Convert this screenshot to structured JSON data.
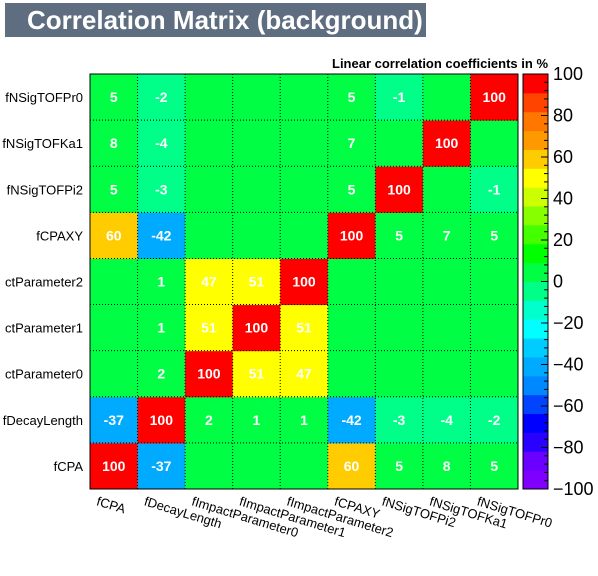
{
  "chart_data": {
    "type": "heatmap",
    "title": "Correlation Matrix (background)",
    "subtitle": "Linear correlation coefficients in %",
    "variables": [
      "fCPA",
      "fDecayLength",
      "fImpactParameter0",
      "fImpactParameter1",
      "fImpactParameter2",
      "fCPAXY",
      "fNSigTOFPi2",
      "fNSigTOFKa1",
      "fNSigTOFPr0"
    ],
    "y_labels_visible": [
      "fCPA",
      "fDecayLength",
      "ctParameter0",
      "ctParameter1",
      "ctParameter2",
      "fCPAXY",
      "fNSigTOFPi2",
      "fNSigTOFKa1",
      "fNSigTOFPr0"
    ],
    "matrix": [
      [
        100,
        -37,
        0,
        0,
        0,
        60,
        5,
        8,
        5
      ],
      [
        -37,
        100,
        2,
        1,
        1,
        -42,
        -3,
        -4,
        -2
      ],
      [
        0,
        2,
        100,
        51,
        47,
        0,
        0,
        0,
        0
      ],
      [
        0,
        1,
        51,
        100,
        51,
        0,
        0,
        0,
        0
      ],
      [
        0,
        1,
        47,
        51,
        100,
        0,
        0,
        0,
        0
      ],
      [
        60,
        -42,
        0,
        0,
        0,
        100,
        5,
        7,
        5
      ],
      [
        5,
        -3,
        0,
        0,
        0,
        5,
        100,
        0,
        -1
      ],
      [
        8,
        -4,
        0,
        0,
        0,
        7,
        0,
        100,
        0
      ],
      [
        5,
        -2,
        0,
        0,
        0,
        5,
        -1,
        0,
        100
      ]
    ],
    "zlim": [
      -100,
      100
    ],
    "z_ticks": [
      "100",
      "80",
      "60",
      "40",
      "20",
      "0",
      "−20",
      "−40",
      "−60",
      "−80",
      "−100"
    ],
    "palette": [
      "#8000ff",
      "#6a00ff",
      "#2a00ff",
      "#0000ff",
      "#0044ff",
      "#0088ff",
      "#00aaff",
      "#00ccff",
      "#00ffff",
      "#00ffcc",
      "#00ff88",
      "#00ff44",
      "#00ff00",
      "#44ff00",
      "#88ff00",
      "#ccff00",
      "#ffff00",
      "#ffcc00",
      "#ff9900",
      "#ff7700",
      "#ff4400",
      "#ff0000"
    ],
    "grid": true
  }
}
